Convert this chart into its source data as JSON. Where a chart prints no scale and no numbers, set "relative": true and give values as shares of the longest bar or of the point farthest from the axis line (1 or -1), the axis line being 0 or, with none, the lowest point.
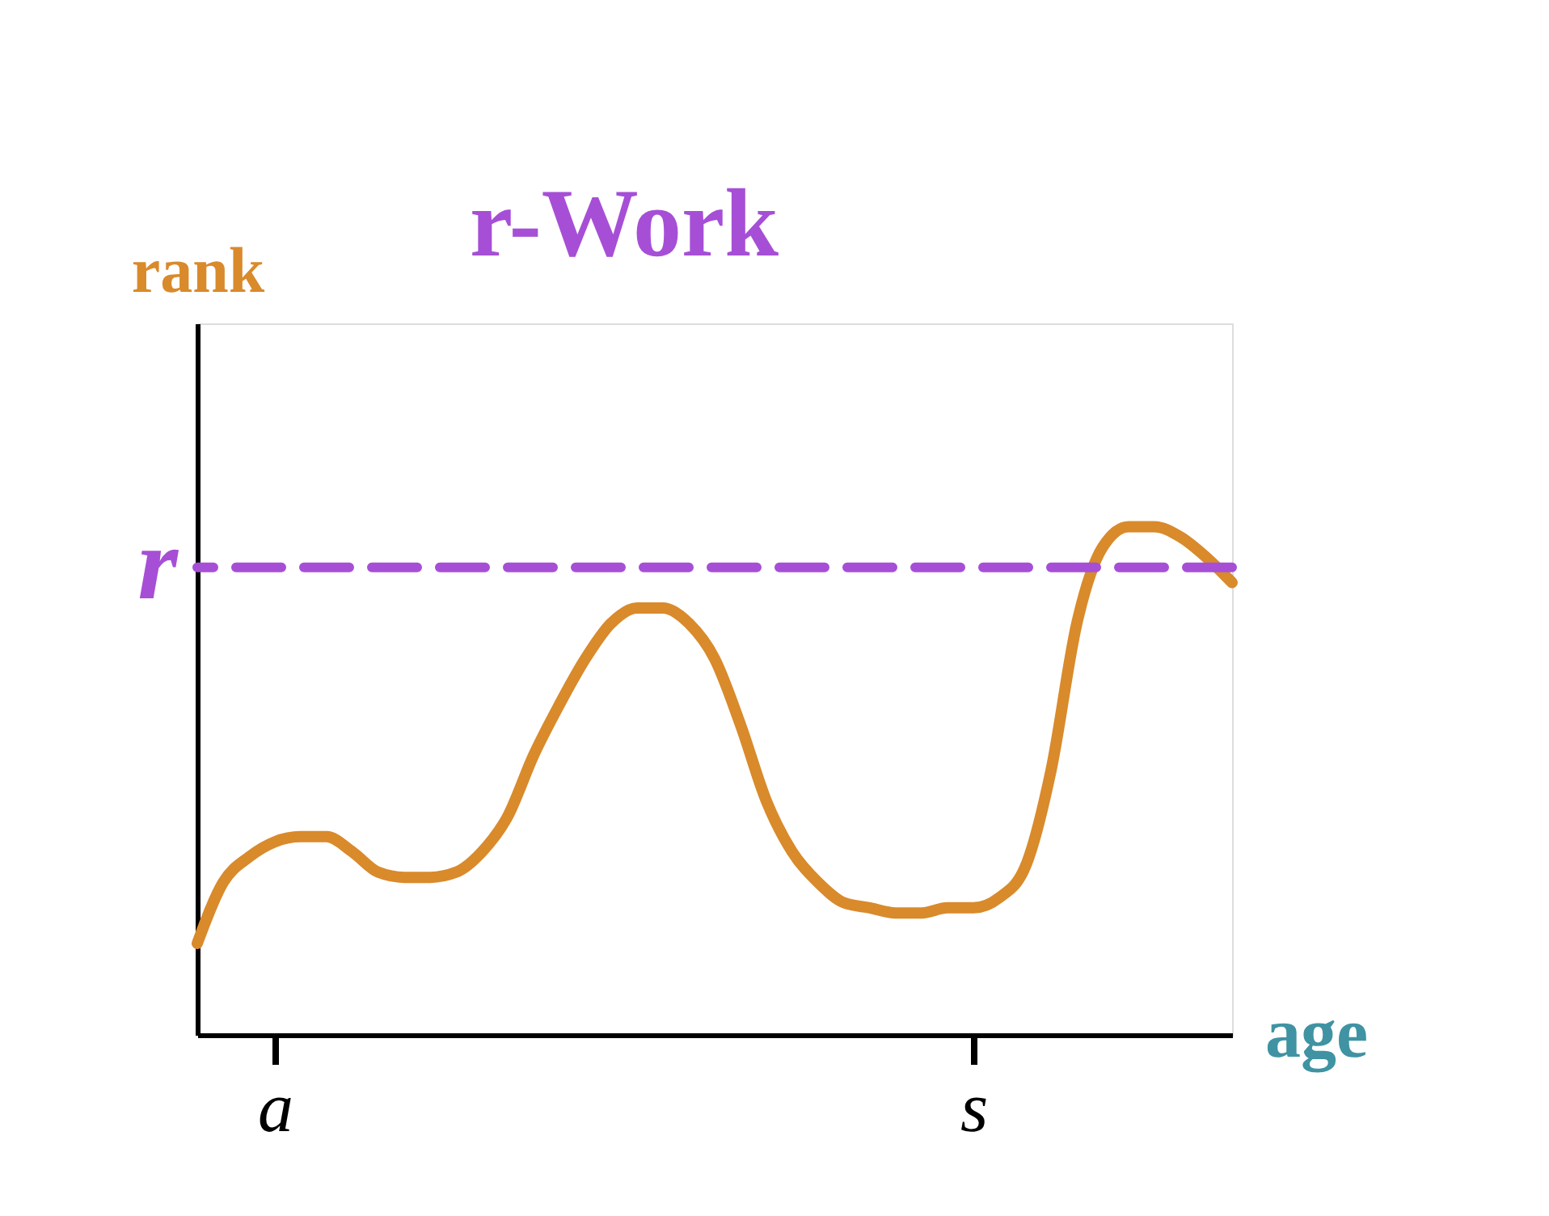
{
  "chart_data": {
    "type": "line",
    "relative": true,
    "xlabel": "age",
    "ylabel": "rank",
    "categories": [
      null,
      null,
      null,
      "a",
      null,
      null,
      null,
      null,
      null,
      null,
      null,
      null,
      null,
      null,
      null,
      null,
      null,
      null,
      null,
      null,
      null,
      null,
      null,
      null,
      null,
      null,
      null,
      null,
      null,
      null,
      "s",
      null,
      null,
      null,
      null,
      null,
      null,
      null,
      null,
      null,
      null
    ],
    "series": [
      {
        "color": "#d98a2b",
        "values": [
          0.18,
          0.3,
          0.35,
          0.38,
          0.39,
          0.39,
          0.36,
          0.32,
          0.31,
          0.31,
          0.32,
          0.36,
          0.43,
          0.55,
          0.65,
          0.74,
          0.81,
          0.84,
          0.84,
          0.81,
          0.74,
          0.61,
          0.46,
          0.36,
          0.3,
          0.26,
          0.25,
          0.24,
          0.24,
          0.25,
          0.25,
          0.27,
          0.33,
          0.52,
          0.81,
          0.96,
          1,
          1,
          0.98,
          0.94,
          0.89
        ]
      }
    ],
    "ref_lines": [
      {
        "axis": "y",
        "value": 0.92,
        "label": "r",
        "color": "#a64fd6",
        "line_style": "dashed"
      }
    ],
    "annotations": [
      "r-Work"
    ],
    "grid": false,
    "line_style": "solid"
  }
}
